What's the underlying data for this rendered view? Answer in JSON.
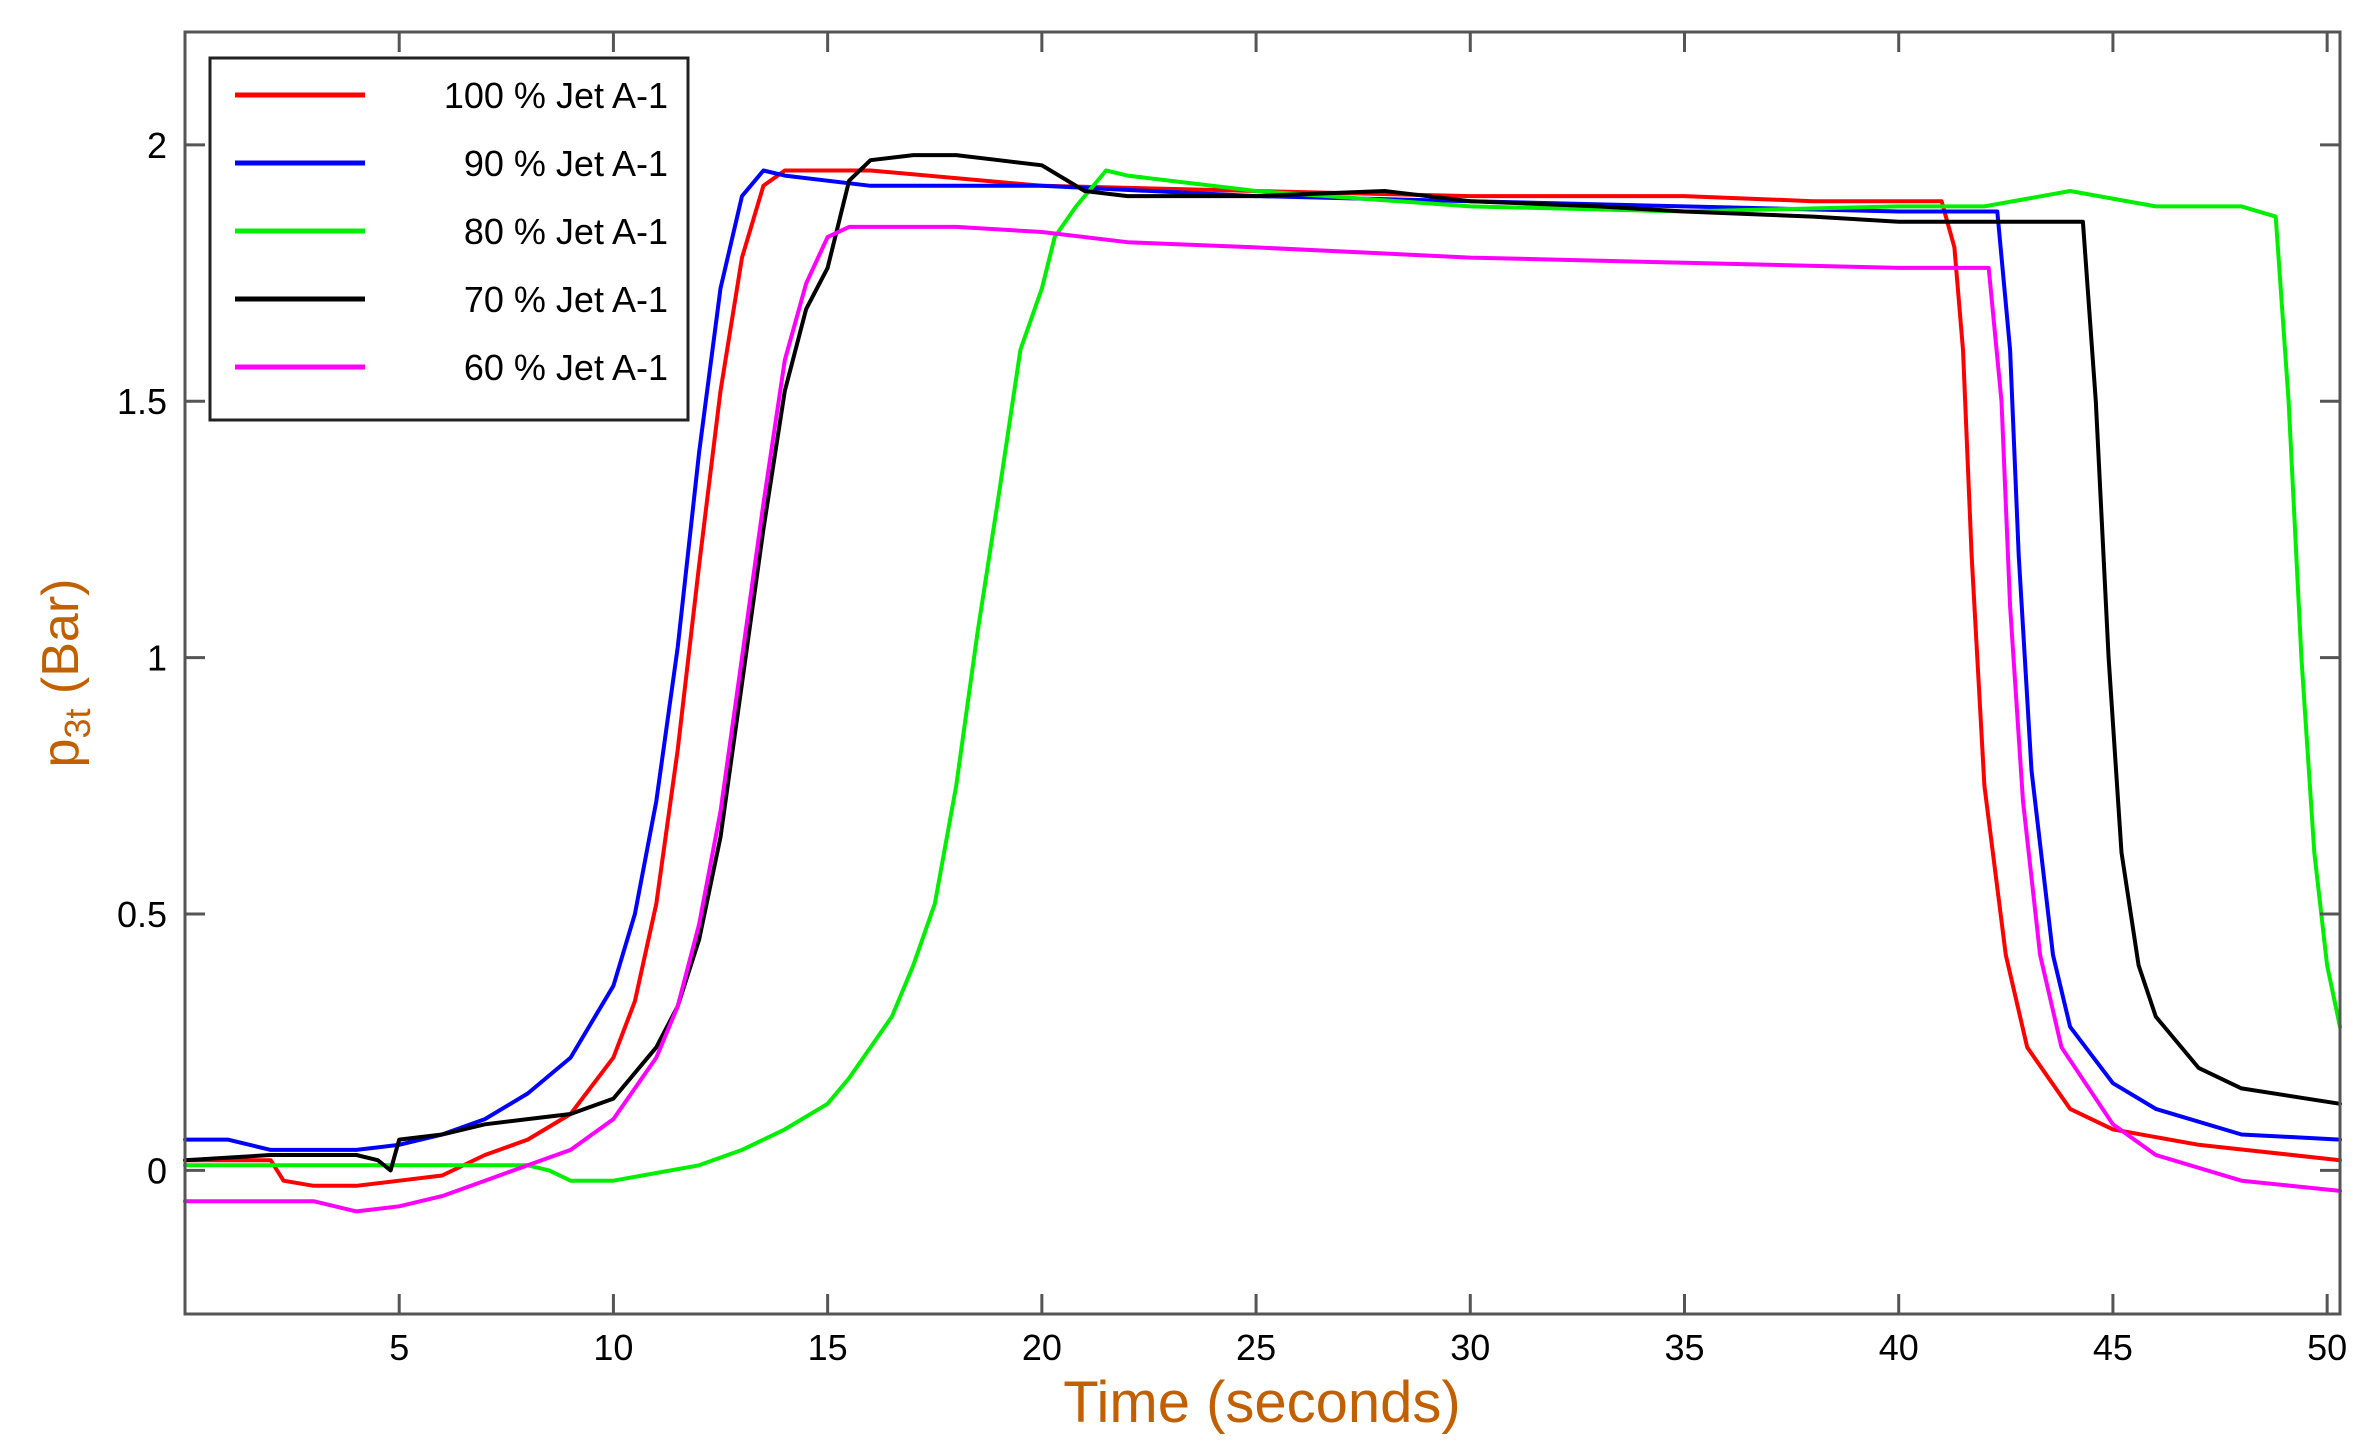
{
  "chart_data": {
    "type": "line",
    "xlabel": "Time (seconds)",
    "ylabel_main": "p",
    "ylabel_sub": "3t",
    "ylabel_unit": " (Bar)",
    "xlim": [
      0,
      50.3
    ],
    "ylim": [
      -0.28,
      2.22
    ],
    "xticks": [
      5,
      10,
      15,
      20,
      25,
      30,
      35,
      40,
      45,
      50
    ],
    "yticks": [
      0,
      0.5,
      1,
      1.5,
      2
    ],
    "ytick_labels": [
      "0",
      "0.5",
      "1",
      "1.5",
      "2"
    ],
    "grid": false,
    "legend_position": "top-left",
    "series": [
      {
        "name": "100 % Jet A-1",
        "color": "#ff0000",
        "points": [
          [
            0,
            0.02
          ],
          [
            2,
            0.02
          ],
          [
            2.3,
            -0.02
          ],
          [
            3,
            -0.03
          ],
          [
            4,
            -0.03
          ],
          [
            5,
            -0.02
          ],
          [
            6,
            -0.01
          ],
          [
            7,
            0.03
          ],
          [
            8,
            0.06
          ],
          [
            9,
            0.11
          ],
          [
            10,
            0.22
          ],
          [
            10.5,
            0.33
          ],
          [
            11,
            0.52
          ],
          [
            11.5,
            0.82
          ],
          [
            12,
            1.18
          ],
          [
            12.5,
            1.52
          ],
          [
            13,
            1.78
          ],
          [
            13.5,
            1.92
          ],
          [
            14,
            1.95
          ],
          [
            16,
            1.95
          ],
          [
            20,
            1.92
          ],
          [
            25,
            1.91
          ],
          [
            30,
            1.9
          ],
          [
            35,
            1.9
          ],
          [
            38,
            1.89
          ],
          [
            41,
            1.89
          ],
          [
            41.3,
            1.8
          ],
          [
            41.5,
            1.6
          ],
          [
            41.7,
            1.2
          ],
          [
            42,
            0.75
          ],
          [
            42.5,
            0.42
          ],
          [
            43,
            0.24
          ],
          [
            44,
            0.12
          ],
          [
            45,
            0.08
          ],
          [
            47,
            0.05
          ],
          [
            50.3,
            0.02
          ]
        ]
      },
      {
        "name": "90 % Jet A-1",
        "color": "#0000ff",
        "points": [
          [
            0,
            0.06
          ],
          [
            1,
            0.06
          ],
          [
            2,
            0.04
          ],
          [
            3,
            0.04
          ],
          [
            4,
            0.04
          ],
          [
            5,
            0.05
          ],
          [
            6,
            0.07
          ],
          [
            7,
            0.1
          ],
          [
            8,
            0.15
          ],
          [
            9,
            0.22
          ],
          [
            10,
            0.36
          ],
          [
            10.5,
            0.5
          ],
          [
            11,
            0.72
          ],
          [
            11.5,
            1.02
          ],
          [
            12,
            1.4
          ],
          [
            12.5,
            1.72
          ],
          [
            13,
            1.9
          ],
          [
            13.5,
            1.95
          ],
          [
            14,
            1.94
          ],
          [
            16,
            1.92
          ],
          [
            20,
            1.92
          ],
          [
            25,
            1.9
          ],
          [
            30,
            1.89
          ],
          [
            35,
            1.88
          ],
          [
            40,
            1.87
          ],
          [
            42.3,
            1.87
          ],
          [
            42.6,
            1.6
          ],
          [
            42.8,
            1.2
          ],
          [
            43.1,
            0.78
          ],
          [
            43.6,
            0.42
          ],
          [
            44,
            0.28
          ],
          [
            45,
            0.17
          ],
          [
            46,
            0.12
          ],
          [
            48,
            0.07
          ],
          [
            50.3,
            0.06
          ]
        ]
      },
      {
        "name": "80 % Jet A-1",
        "color": "#00ee00",
        "points": [
          [
            0,
            0.01
          ],
          [
            2,
            0.01
          ],
          [
            4,
            0.01
          ],
          [
            6,
            0.01
          ],
          [
            8,
            0.01
          ],
          [
            8.5,
            0.0
          ],
          [
            9,
            -0.02
          ],
          [
            10,
            -0.02
          ],
          [
            12,
            0.01
          ],
          [
            13,
            0.04
          ],
          [
            14,
            0.08
          ],
          [
            15,
            0.13
          ],
          [
            15.5,
            0.18
          ],
          [
            16.5,
            0.3
          ],
          [
            17,
            0.4
          ],
          [
            17.5,
            0.52
          ],
          [
            18,
            0.75
          ],
          [
            18.5,
            1.05
          ],
          [
            19,
            1.32
          ],
          [
            19.5,
            1.6
          ],
          [
            20,
            1.72
          ],
          [
            20.3,
            1.82
          ],
          [
            20.8,
            1.88
          ],
          [
            21.5,
            1.95
          ],
          [
            22,
            1.94
          ],
          [
            25,
            1.91
          ],
          [
            30,
            1.88
          ],
          [
            35,
            1.87
          ],
          [
            40,
            1.88
          ],
          [
            42,
            1.88
          ],
          [
            44,
            1.91
          ],
          [
            46,
            1.88
          ],
          [
            48,
            1.88
          ],
          [
            48.8,
            1.86
          ],
          [
            49.1,
            1.5
          ],
          [
            49.4,
            1.0
          ],
          [
            49.7,
            0.62
          ],
          [
            50,
            0.4
          ],
          [
            50.3,
            0.28
          ]
        ]
      },
      {
        "name": "70 % Jet A-1",
        "color": "#000000",
        "points": [
          [
            0,
            0.02
          ],
          [
            2,
            0.03
          ],
          [
            4,
            0.03
          ],
          [
            4.5,
            0.02
          ],
          [
            4.8,
            0.0
          ],
          [
            5,
            0.06
          ],
          [
            6,
            0.07
          ],
          [
            7,
            0.09
          ],
          [
            8,
            0.1
          ],
          [
            9,
            0.11
          ],
          [
            10,
            0.14
          ],
          [
            11,
            0.24
          ],
          [
            11.5,
            0.32
          ],
          [
            12,
            0.45
          ],
          [
            12.5,
            0.65
          ],
          [
            13,
            0.95
          ],
          [
            13.5,
            1.25
          ],
          [
            14,
            1.52
          ],
          [
            14.5,
            1.68
          ],
          [
            15,
            1.76
          ],
          [
            15.5,
            1.93
          ],
          [
            16,
            1.97
          ],
          [
            17,
            1.98
          ],
          [
            18,
            1.98
          ],
          [
            19,
            1.97
          ],
          [
            20,
            1.96
          ],
          [
            21,
            1.91
          ],
          [
            22,
            1.9
          ],
          [
            25,
            1.9
          ],
          [
            28,
            1.91
          ],
          [
            30,
            1.89
          ],
          [
            33,
            1.88
          ],
          [
            35,
            1.87
          ],
          [
            38,
            1.86
          ],
          [
            40,
            1.85
          ],
          [
            44.3,
            1.85
          ],
          [
            44.6,
            1.5
          ],
          [
            44.9,
            1.0
          ],
          [
            45.2,
            0.62
          ],
          [
            45.6,
            0.4
          ],
          [
            46,
            0.3
          ],
          [
            47,
            0.2
          ],
          [
            48,
            0.16
          ],
          [
            50.3,
            0.13
          ]
        ]
      },
      {
        "name": "60 % Jet A-1",
        "color": "#ff00ff",
        "points": [
          [
            0,
            -0.06
          ],
          [
            2,
            -0.06
          ],
          [
            3,
            -0.06
          ],
          [
            4,
            -0.08
          ],
          [
            5,
            -0.07
          ],
          [
            6,
            -0.05
          ],
          [
            7,
            -0.02
          ],
          [
            8,
            0.01
          ],
          [
            9,
            0.04
          ],
          [
            10,
            0.1
          ],
          [
            11,
            0.22
          ],
          [
            11.5,
            0.32
          ],
          [
            12,
            0.48
          ],
          [
            12.5,
            0.7
          ],
          [
            13,
            1.0
          ],
          [
            13.5,
            1.3
          ],
          [
            14,
            1.58
          ],
          [
            14.5,
            1.73
          ],
          [
            15,
            1.82
          ],
          [
            15.5,
            1.84
          ],
          [
            18,
            1.84
          ],
          [
            20,
            1.83
          ],
          [
            22,
            1.81
          ],
          [
            25,
            1.8
          ],
          [
            30,
            1.78
          ],
          [
            35,
            1.77
          ],
          [
            40,
            1.76
          ],
          [
            42.1,
            1.76
          ],
          [
            42.4,
            1.5
          ],
          [
            42.6,
            1.1
          ],
          [
            42.9,
            0.72
          ],
          [
            43.3,
            0.42
          ],
          [
            43.8,
            0.24
          ],
          [
            45,
            0.09
          ],
          [
            46,
            0.03
          ],
          [
            48,
            -0.02
          ],
          [
            50.3,
            -0.04
          ]
        ]
      }
    ]
  }
}
